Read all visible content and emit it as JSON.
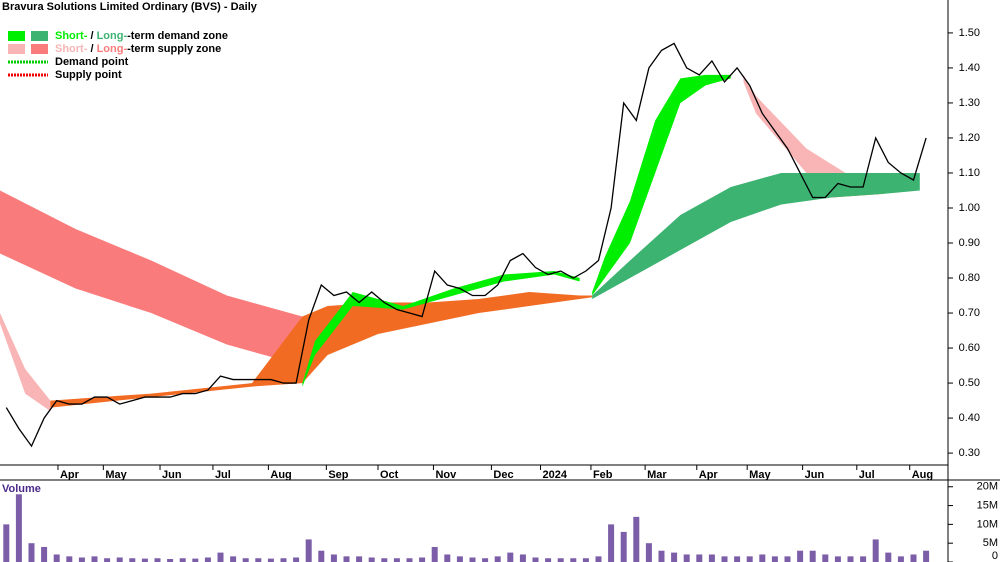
{
  "chart_data": [
    {
      "type": "price",
      "title": "Bravura Solutions Limited Ordinary (BVS) - Daily",
      "legend": [
        {
          "colors": [
            "#00ee00",
            "#3cb371"
          ],
          "parts": [
            "Short-",
            " / ",
            "Long-",
            "-term demand zone"
          ]
        },
        {
          "colors": [
            "#f9b5b5",
            "#fa7b7b"
          ],
          "parts": [
            "Short-",
            " / ",
            "Long-",
            "-term supply zone"
          ]
        },
        {
          "colors": [
            "#00cc00"
          ],
          "parts": [
            "Demand point"
          ]
        },
        {
          "colors": [
            "#ee0000"
          ],
          "parts": [
            "Supply point"
          ]
        }
      ],
      "xlim": [
        0,
        75
      ],
      "xticks": [
        {
          "value": 4.6,
          "label": "Apr"
        },
        {
          "value": 8.2,
          "label": "May"
        },
        {
          "value": 12.7,
          "label": "Jun"
        },
        {
          "value": 16.9,
          "label": "Jul"
        },
        {
          "value": 21.3,
          "label": "Aug"
        },
        {
          "value": 25.9,
          "label": "Sep"
        },
        {
          "value": 30,
          "label": "Oct"
        },
        {
          "value": 34.4,
          "label": "Nov"
        },
        {
          "value": 39,
          "label": "Dec"
        },
        {
          "value": 42.9,
          "label": "2024"
        },
        {
          "value": 46.9,
          "label": "Feb"
        },
        {
          "value": 51.2,
          "label": "Mar"
        },
        {
          "value": 55.3,
          "label": "Apr"
        },
        {
          "value": 59.3,
          "label": "May"
        },
        {
          "value": 63.7,
          "label": "Jun"
        },
        {
          "value": 68,
          "label": "Jul"
        },
        {
          "value": 72.2,
          "label": "Aug"
        }
      ],
      "ylim": [
        0.266,
        1.594
      ],
      "yticks": [
        {
          "value": 0.3,
          "label": "0.30"
        },
        {
          "value": 0.4,
          "label": "0.40"
        },
        {
          "value": 0.5,
          "label": "0.50"
        },
        {
          "value": 0.6,
          "label": "0.60"
        },
        {
          "value": 0.7,
          "label": "0.70"
        },
        {
          "value": 0.8,
          "label": "0.80"
        },
        {
          "value": 0.9,
          "label": "0.90"
        },
        {
          "value": 1.0,
          "label": "1.00"
        },
        {
          "value": 1.1,
          "label": "1.10"
        },
        {
          "value": 1.2,
          "label": "1.20"
        },
        {
          "value": 1.3,
          "label": "1.30"
        },
        {
          "value": 1.4,
          "label": "1.40"
        },
        {
          "value": 1.5,
          "label": "1.50"
        }
      ],
      "zones": [
        {
          "color": "#fa7b7b",
          "x": [
            0,
            6,
            12,
            18,
            24
          ],
          "upper": [
            1.05,
            0.94,
            0.85,
            0.75,
            0.69
          ],
          "lower": [
            0.87,
            0.77,
            0.7,
            0.61,
            0.55
          ]
        },
        {
          "color": "#f9b5b5",
          "x": [
            0,
            2,
            4
          ],
          "upper": [
            0.7,
            0.54,
            0.45
          ],
          "lower": [
            0.67,
            0.47,
            0.42
          ]
        },
        {
          "color": "#f9b5b5",
          "x": [
            59,
            60,
            64,
            68
          ],
          "upper": [
            1.38,
            1.32,
            1.17,
            1.08
          ],
          "lower": [
            1.36,
            1.27,
            1.1,
            1.06
          ]
        },
        {
          "color": "#f26b22",
          "x": [
            4,
            12,
            20,
            24,
            26,
            30,
            34,
            38,
            42,
            46,
            47
          ],
          "upper": [
            0.45,
            0.47,
            0.5,
            0.69,
            0.72,
            0.73,
            0.73,
            0.74,
            0.76,
            0.75,
            0.75
          ],
          "lower": [
            0.43,
            0.46,
            0.49,
            0.5,
            0.58,
            0.64,
            0.67,
            0.7,
            0.72,
            0.74,
            0.745
          ]
        },
        {
          "color": "#f26b22",
          "x": [
            63,
            66,
            70,
            72
          ],
          "upper": [
            1.1,
            1.1,
            1.1,
            1.09
          ],
          "lower": [
            1.03,
            1.03,
            1.04,
            1.05
          ]
        },
        {
          "color": "#00ee00",
          "x": [
            24,
            25,
            28,
            32,
            36,
            40,
            44,
            46
          ],
          "upper": [
            0.5,
            0.62,
            0.76,
            0.72,
            0.77,
            0.81,
            0.82,
            0.8
          ],
          "lower": [
            0.49,
            0.58,
            0.72,
            0.71,
            0.75,
            0.79,
            0.81,
            0.79
          ]
        },
        {
          "color": "#00ee00",
          "x": [
            47,
            48,
            50,
            52,
            54,
            56,
            58
          ],
          "upper": [
            0.76,
            0.86,
            1.02,
            1.25,
            1.37,
            1.38,
            1.38
          ],
          "lower": [
            0.75,
            0.8,
            0.9,
            1.1,
            1.3,
            1.35,
            1.37
          ]
        },
        {
          "color": "#3cb371",
          "x": [
            47,
            50,
            54,
            58,
            62,
            66,
            70,
            73
          ],
          "upper": [
            0.75,
            0.85,
            0.98,
            1.06,
            1.1,
            1.1,
            1.1,
            1.1
          ],
          "lower": [
            0.74,
            0.8,
            0.88,
            0.96,
            1.01,
            1.03,
            1.04,
            1.05
          ]
        }
      ],
      "series": [
        {
          "color": "#000000",
          "values": [
            0.43,
            0.37,
            0.32,
            0.4,
            0.45,
            0.44,
            0.44,
            0.46,
            0.46,
            0.44,
            0.45,
            0.46,
            0.46,
            0.46,
            0.47,
            0.47,
            0.48,
            0.52,
            0.51,
            0.51,
            0.51,
            0.51,
            0.5,
            0.5,
            0.68,
            0.78,
            0.75,
            0.76,
            0.73,
            0.76,
            0.73,
            0.71,
            0.7,
            0.69,
            0.82,
            0.78,
            0.77,
            0.75,
            0.75,
            0.78,
            0.85,
            0.87,
            0.83,
            0.81,
            0.82,
            0.8,
            0.82,
            0.85,
            1.0,
            1.3,
            1.25,
            1.4,
            1.45,
            1.47,
            1.4,
            1.38,
            1.42,
            1.36,
            1.4,
            1.35,
            1.27,
            1.22,
            1.17,
            1.1,
            1.03,
            1.03,
            1.07,
            1.06,
            1.06,
            1.2,
            1.13,
            1.1,
            1.08,
            1.2
          ]
        }
      ]
    },
    {
      "type": "bar",
      "title": "Volume",
      "color": "#7b5ea7",
      "ylim": [
        0,
        21000000
      ],
      "yticks": [
        {
          "value": 0,
          "label": "0"
        },
        {
          "value": 5000000,
          "label": "5M"
        },
        {
          "value": 10000000,
          "label": "10M"
        },
        {
          "value": 15000000,
          "label": "15M"
        },
        {
          "value": 20000000,
          "label": "20M"
        }
      ],
      "values": [
        10000000,
        18000000,
        5000000,
        4000000,
        2000000,
        1500000,
        1200000,
        1500000,
        1000000,
        1200000,
        1000000,
        900000,
        1000000,
        800000,
        1000000,
        900000,
        1200000,
        2500000,
        1500000,
        1000000,
        1000000,
        900000,
        1000000,
        1200000,
        6000000,
        3000000,
        2000000,
        1500000,
        1500000,
        1200000,
        1000000,
        1000000,
        1000000,
        1200000,
        4000000,
        2000000,
        1500000,
        1200000,
        1000000,
        1500000,
        2500000,
        2000000,
        1200000,
        1000000,
        1000000,
        1000000,
        1000000,
        1500000,
        10000000,
        8000000,
        12000000,
        5000000,
        3000000,
        2500000,
        2000000,
        2000000,
        2000000,
        1500000,
        1500000,
        1500000,
        2000000,
        1500000,
        1500000,
        3000000,
        3000000,
        2000000,
        1500000,
        1500000,
        1500000,
        6000000,
        2500000,
        1500000,
        2000000,
        3000000
      ]
    }
  ]
}
